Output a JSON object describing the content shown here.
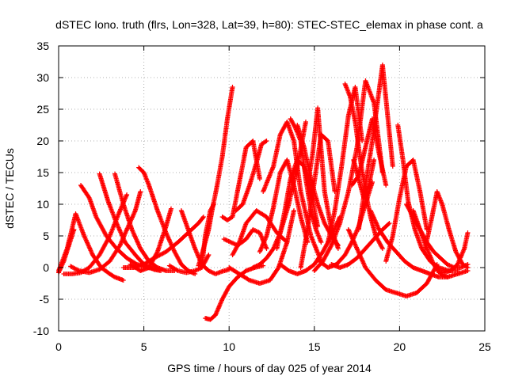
{
  "chart_data": {
    "type": "scatter",
    "title": "dSTEC Iono. truth (flrs, Lon=328, Lat=39, h=80): STEC-STEC_elemax in phase cont. a",
    "xlabel": "GPS time / hours of day 025 of year 2014",
    "ylabel": "dSTEC  / TECUs",
    "xlim": [
      0,
      25
    ],
    "ylim": [
      -10,
      35
    ],
    "xticks": [
      0,
      5,
      10,
      15,
      20,
      25
    ],
    "yticks": [
      -10,
      -5,
      0,
      5,
      10,
      15,
      20,
      25,
      30,
      35
    ],
    "xtick_labels": [
      "0",
      "5",
      "10",
      "15",
      "20",
      "25"
    ],
    "ytick_labels": [
      "-10",
      "-5",
      "0",
      "5",
      "10",
      "15",
      "20",
      "25",
      "30",
      "35"
    ],
    "grid": true,
    "marker": "+",
    "color": "#ff0000",
    "series": [
      {
        "x": [
          0.0,
          0.3,
          0.6,
          0.9
        ],
        "y": [
          -0.8,
          1.0,
          3.5,
          6.0
        ]
      },
      {
        "x": [
          0.0,
          0.5,
          1.0,
          1.5,
          2.0,
          2.5,
          3.0,
          3.3,
          3.8
        ],
        "y": [
          -0.5,
          3.0,
          8.5,
          5.0,
          2.0,
          0.0,
          -1.0,
          -1.5,
          -2.0
        ]
      },
      {
        "x": [
          0.3,
          0.8,
          1.3,
          1.8,
          2.4,
          3.0,
          3.6,
          4.0
        ],
        "y": [
          -1.0,
          -1.0,
          -0.8,
          0.0,
          2.0,
          5.0,
          9.0,
          11.5
        ]
      },
      {
        "x": [
          1.3,
          1.8,
          2.2,
          2.8,
          3.4,
          4.0,
          4.6,
          5.2,
          5.6,
          5.9
        ],
        "y": [
          13.0,
          11.0,
          8.0,
          5.0,
          3.0,
          1.5,
          0.5,
          0.0,
          -0.2,
          -0.3
        ]
      },
      {
        "x": [
          2.4,
          2.9,
          3.4,
          3.9,
          4.5,
          5.0,
          5.6,
          6.0
        ],
        "y": [
          14.8,
          10.5,
          7.0,
          4.0,
          2.0,
          0.5,
          -0.3,
          -0.5
        ]
      },
      {
        "x": [
          3.3,
          3.8,
          4.3,
          4.8,
          5.3,
          5.8,
          6.3,
          6.8
        ],
        "y": [
          14.8,
          10.0,
          6.0,
          3.0,
          1.0,
          0.0,
          -0.5,
          -0.5
        ]
      },
      {
        "x": [
          0.7,
          1.2,
          1.8,
          2.4,
          3.0,
          3.6,
          4.0,
          4.5,
          4.8
        ],
        "y": [
          0.2,
          -0.5,
          -0.8,
          -0.3,
          1.0,
          3.5,
          6.0,
          9.0,
          12.0
        ]
      },
      {
        "x": [
          4.7,
          5.0,
          5.3,
          5.8,
          6.3,
          6.8,
          7.2,
          7.6,
          8.0
        ],
        "y": [
          15.8,
          15.0,
          13.0,
          9.0,
          5.5,
          2.5,
          0.5,
          -0.5,
          -1.0
        ]
      },
      {
        "x": [
          4.2,
          4.8,
          5.3,
          5.8,
          6.3,
          6.6
        ],
        "y": [
          0.5,
          -0.5,
          0.0,
          2.5,
          6.5,
          9.3
        ]
      },
      {
        "x": [
          3.8,
          4.4,
          5.0,
          5.6,
          6.3,
          7.0,
          7.6,
          8.2,
          8.5
        ],
        "y": [
          0.0,
          0.0,
          0.5,
          1.5,
          2.5,
          4.0,
          5.5,
          7.0,
          8.0
        ]
      },
      {
        "x": [
          7.2,
          7.6,
          8.0,
          8.4,
          8.8,
          9.2,
          9.6,
          10.0
        ],
        "y": [
          9.0,
          6.0,
          3.0,
          0.5,
          -0.5,
          -1.0,
          -0.6,
          -0.3
        ]
      },
      {
        "x": [
          6.5,
          7.0,
          7.5,
          8.0,
          8.4,
          8.8
        ],
        "y": [
          0.3,
          -0.5,
          -0.8,
          -0.5,
          0.0,
          2.0
        ]
      },
      {
        "x": [
          8.2,
          8.5,
          8.8,
          9.0,
          9.3,
          9.6,
          9.9,
          10.2
        ],
        "y": [
          0.3,
          3.0,
          6.0,
          9.0,
          13.0,
          17.5,
          23.5,
          28.5
        ]
      },
      {
        "x": [
          8.4,
          8.6,
          8.9,
          9.1
        ],
        "y": [
          0.0,
          5.0,
          9.0,
          10.0
        ]
      },
      {
        "x": [
          8.6,
          8.9,
          9.2,
          9.6,
          10.0,
          10.5,
          11.0,
          11.5,
          12.0
        ],
        "y": [
          -8.0,
          -8.2,
          -7.5,
          -5.0,
          -3.0,
          -1.5,
          -0.5,
          0.0,
          0.3
        ]
      },
      {
        "x": [
          9.6,
          9.9,
          10.2,
          10.6,
          11.0,
          11.4,
          11.8
        ],
        "y": [
          8.0,
          7.5,
          8.0,
          13.5,
          19.0,
          20.0,
          14.0
        ]
      },
      {
        "x": [
          9.7,
          10.1,
          10.5,
          11.0,
          11.4,
          11.8,
          12.2
        ],
        "y": [
          4.5,
          4.0,
          3.5,
          4.5,
          6.0,
          5.5,
          3.0
        ]
      },
      {
        "x": [
          10.0,
          10.6,
          11.2,
          11.8,
          12.4,
          12.9,
          13.4,
          13.8
        ],
        "y": [
          0.0,
          -1.0,
          -2.0,
          -2.5,
          -2.0,
          0.0,
          4.0,
          9.0
        ]
      },
      {
        "x": [
          10.4,
          10.8,
          11.2,
          11.6,
          11.9,
          12.2
        ],
        "y": [
          9.0,
          10.0,
          13.0,
          16.5,
          19.5,
          20.0
        ]
      },
      {
        "x": [
          10.2,
          10.6,
          11.0,
          11.6,
          12.2,
          12.8,
          13.4
        ],
        "y": [
          2.0,
          4.0,
          7.0,
          9.0,
          8.0,
          5.5,
          4.0
        ]
      },
      {
        "x": [
          11.4,
          11.8,
          12.2,
          12.6,
          13.0,
          13.5,
          14.0,
          14.5
        ],
        "y": [
          0.0,
          0.5,
          1.5,
          3.0,
          5.5,
          10.0,
          16.0,
          23.0
        ]
      },
      {
        "x": [
          11.8,
          12.2,
          12.6,
          13.0,
          13.4,
          13.8,
          14.2,
          14.6
        ],
        "y": [
          2.5,
          5.0,
          9.5,
          15.0,
          17.0,
          13.0,
          8.0,
          4.0
        ]
      },
      {
        "x": [
          12.0,
          12.6,
          13.0,
          13.4,
          13.8,
          14.2,
          14.8,
          15.4
        ],
        "y": [
          12.0,
          16.0,
          21.0,
          23.0,
          20.0,
          12.0,
          5.0,
          1.0
        ]
      },
      {
        "x": [
          12.8,
          13.2,
          13.6,
          14.0,
          14.4,
          14.8,
          15.2
        ],
        "y": [
          3.0,
          8.0,
          14.0,
          17.0,
          16.0,
          12.0,
          6.5
        ]
      },
      {
        "x": [
          13.0,
          13.5,
          14.0,
          14.5,
          15.0,
          15.5,
          16.0,
          16.5
        ],
        "y": [
          0.5,
          -0.5,
          -1.0,
          -0.5,
          0.5,
          2.5,
          5.0,
          8.0
        ]
      },
      {
        "x": [
          13.6,
          13.9,
          14.2,
          14.5,
          14.8,
          15.1,
          15.4
        ],
        "y": [
          23.5,
          22.0,
          20.0,
          14.0,
          9.0,
          6.0,
          4.0
        ]
      },
      {
        "x": [
          14.0,
          14.4,
          14.8,
          15.2,
          15.6,
          16.0,
          16.4
        ],
        "y": [
          22.5,
          19.0,
          14.0,
          10.0,
          7.0,
          5.0,
          3.5
        ]
      },
      {
        "x": [
          14.2,
          14.6,
          15.0,
          15.4,
          15.8,
          16.2
        ],
        "y": [
          0.0,
          6.0,
          13.5,
          21.0,
          20.0,
          12.0
        ]
      },
      {
        "x": [
          14.6,
          14.9,
          15.2,
          15.6,
          16.0,
          16.4
        ],
        "y": [
          13.0,
          18.0,
          25.2,
          12.0,
          6.0,
          3.0
        ]
      },
      {
        "x": [
          15.0,
          15.5,
          16.0,
          16.5,
          17.0,
          17.5,
          18.0,
          18.5,
          19.0
        ],
        "y": [
          -0.5,
          1.0,
          3.5,
          7.0,
          12.0,
          19.0,
          29.5,
          26.0,
          15.0
        ]
      },
      {
        "x": [
          15.3,
          15.8,
          16.3,
          16.8,
          17.2,
          17.6,
          18.0,
          18.4
        ],
        "y": [
          1.0,
          0.0,
          0.5,
          2.0,
          4.0,
          6.5,
          10.0,
          13.5
        ]
      },
      {
        "x": [
          15.8,
          16.2,
          16.6,
          17.0,
          17.4,
          17.8
        ],
        "y": [
          4.0,
          9.0,
          16.0,
          24.0,
          28.5,
          20.0
        ]
      },
      {
        "x": [
          16.8,
          17.1,
          17.4,
          17.7,
          18.0,
          18.3,
          18.6,
          19.0
        ],
        "y": [
          29.0,
          27.0,
          23.0,
          17.0,
          12.0,
          8.0,
          5.0,
          3.0
        ]
      },
      {
        "x": [
          17.3,
          17.6,
          17.9,
          18.2,
          18.5
        ],
        "y": [
          17.0,
          14.0,
          11.0,
          13.0,
          17.0
        ]
      },
      {
        "x": [
          17.2,
          17.6,
          18.0,
          18.4,
          18.8,
          19.2
        ],
        "y": [
          13.0,
          14.5,
          19.0,
          23.5,
          18.0,
          13.0
        ]
      },
      {
        "x": [
          16.0,
          16.5,
          17.0,
          17.5,
          18.0,
          18.5,
          19.0,
          19.4
        ],
        "y": [
          0.5,
          0.0,
          0.5,
          1.5,
          3.0,
          4.5,
          6.0,
          7.0
        ]
      },
      {
        "x": [
          17.6,
          18.0,
          18.4,
          18.8,
          19.0,
          19.3,
          19.6
        ],
        "y": [
          6.0,
          13.0,
          20.0,
          28.0,
          32.0,
          24.0,
          16.0
        ]
      },
      {
        "x": [
          17.0,
          17.5,
          18.0,
          18.6,
          19.2,
          19.8,
          20.4,
          21.0,
          21.6,
          22.2
        ],
        "y": [
          6.0,
          3.0,
          0.0,
          -2.0,
          -3.5,
          -4.0,
          -4.5,
          -4.0,
          -2.5,
          0.5
        ]
      },
      {
        "x": [
          18.3,
          18.8,
          19.3,
          19.8,
          20.3,
          20.8,
          21.3,
          21.8,
          22.3,
          22.8
        ],
        "y": [
          9.0,
          6.0,
          4.0,
          2.5,
          1.0,
          0.0,
          -0.5,
          -1.0,
          -1.5,
          -1.5
        ]
      },
      {
        "x": [
          19.2,
          19.6,
          20.0,
          20.4,
          20.8,
          21.2,
          21.6
        ],
        "y": [
          1.0,
          5.0,
          11.0,
          16.0,
          17.0,
          12.0,
          6.0
        ]
      },
      {
        "x": [
          19.9,
          20.2,
          20.5,
          20.9,
          21.3,
          21.8,
          22.3,
          22.9,
          23.4
        ],
        "y": [
          22.5,
          17.0,
          10.5,
          6.0,
          3.0,
          1.0,
          0.0,
          -0.5,
          -0.5
        ]
      },
      {
        "x": [
          20.4,
          20.8,
          21.2,
          21.6,
          22.0,
          22.4,
          22.8,
          23.2,
          23.6,
          24.0
        ],
        "y": [
          10.0,
          8.0,
          6.0,
          4.0,
          2.5,
          1.5,
          0.5,
          0.0,
          0.0,
          0.5
        ]
      },
      {
        "x": [
          20.8,
          21.2,
          21.6,
          22.0,
          22.4,
          22.8,
          23.4,
          24.0
        ],
        "y": [
          9.0,
          6.0,
          3.0,
          0.5,
          -1.0,
          -1.5,
          -1.0,
          -0.5
        ]
      },
      {
        "x": [
          21.5,
          21.9,
          22.2,
          22.5,
          22.9,
          23.3,
          23.7,
          24.0
        ],
        "y": [
          3.0,
          8.0,
          12.0,
          10.0,
          6.0,
          2.5,
          0.5,
          0.0
        ]
      },
      {
        "x": [
          22.2,
          22.6,
          23.0,
          23.4,
          23.8,
          24.0
        ],
        "y": [
          -0.5,
          -0.8,
          -0.5,
          0.5,
          3.0,
          5.5
        ]
      }
    ]
  }
}
